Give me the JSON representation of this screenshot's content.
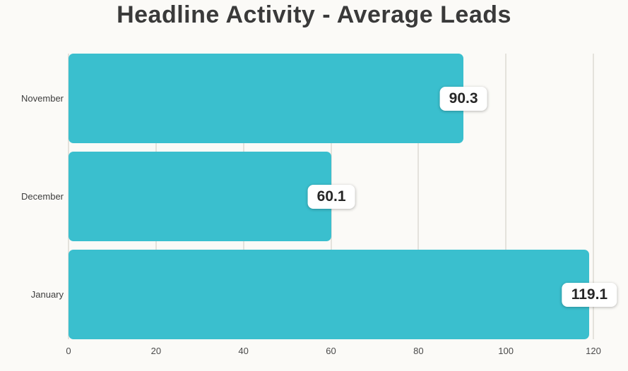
{
  "title": "Headline Activity - Average Leads",
  "colors": {
    "background": "#fbfaf7",
    "bar": "#3abfce",
    "gridline": "#e4e2dc",
    "title_text": "#3a3a3a",
    "axis_text": "#4a4a4a",
    "badge_text": "#262626",
    "badge_background": "#ffffff"
  },
  "chart_data": {
    "type": "bar",
    "orientation": "horizontal",
    "title": "Headline Activity - Average Leads",
    "categories": [
      "November",
      "December",
      "January"
    ],
    "values": [
      90.3,
      60.1,
      119.1
    ],
    "value_labels": [
      "90.3",
      "60.1",
      "119.1"
    ],
    "xlabel": "",
    "ylabel": "",
    "xlim": [
      0,
      120
    ],
    "xticks": [
      0,
      20,
      40,
      60,
      80,
      100,
      120
    ],
    "grid": true,
    "legend": "none"
  }
}
